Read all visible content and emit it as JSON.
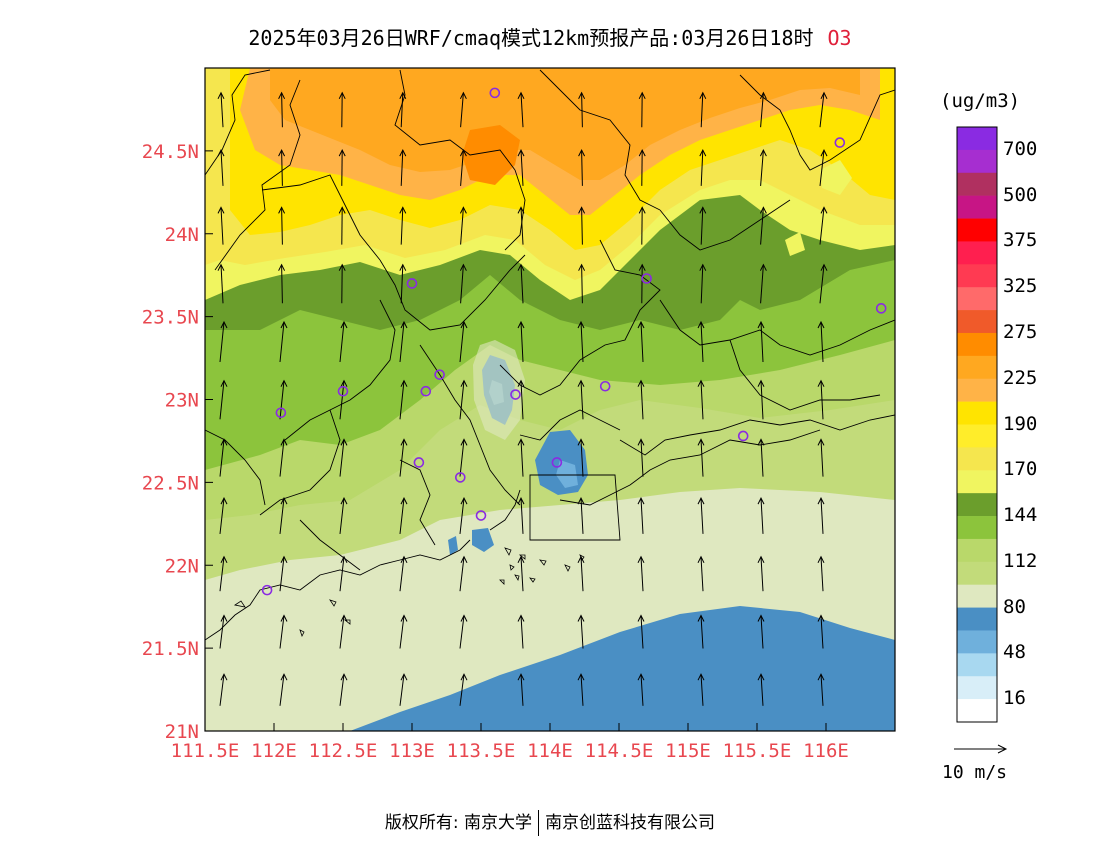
{
  "title": {
    "main": "2025年03月26日WRF/cmaq模式12km预报产品:03月26日18时",
    "species": "O3"
  },
  "axes": {
    "lat_labels": [
      "24.5N",
      "24N",
      "23.5N",
      "23N",
      "22.5N",
      "22N",
      "21.5N",
      "21N"
    ],
    "lon_labels": [
      "111.5E",
      "112E",
      "112.5E",
      "113E",
      "113.5E",
      "114E",
      "114.5E",
      "115E",
      "115.5E",
      "116E"
    ],
    "lat_range": [
      21,
      25
    ],
    "lon_range": [
      111.5,
      116.5
    ]
  },
  "legend": {
    "unit": "(ug/m3)",
    "labels": [
      "700",
      "500",
      "375",
      "325",
      "275",
      "225",
      "190",
      "170",
      "144",
      "112",
      "80",
      "48",
      "16"
    ],
    "colors_top_to_bottom": [
      "#8a2be2",
      "#a62ed0",
      "#b03060",
      "#c71585",
      "#ff0000",
      "#ff1f4f",
      "#ff3a52",
      "#ff6a6a",
      "#f05a2a",
      "#ff8c00",
      "#ffa820",
      "#ffb347",
      "#ffe400",
      "#ffed2a",
      "#f5e64e",
      "#f0f560",
      "#6b9e2c",
      "#8cc43c",
      "#b9d86a",
      "#c2db7a",
      "#dfe8c0",
      "#4a8fc4",
      "#6fb0dc",
      "#a8d8f0",
      "#d8eef8",
      "#ffffff"
    ]
  },
  "wind": {
    "reference": "10 m/s"
  },
  "footer": {
    "left": "版权所有: 南京大学",
    "right": "南京创蓝科技有限公司"
  },
  "colors": {
    "axis_label": "#e8474f",
    "species": "#e0203a",
    "station_marker": "#8a2be2"
  },
  "stations": [
    {
      "lon": 113.6,
      "lat": 24.85
    },
    {
      "lon": 116.1,
      "lat": 24.55
    },
    {
      "lon": 113.0,
      "lat": 23.7
    },
    {
      "lon": 114.7,
      "lat": 23.73
    },
    {
      "lon": 116.4,
      "lat": 23.55
    },
    {
      "lon": 113.2,
      "lat": 23.15
    },
    {
      "lon": 112.5,
      "lat": 23.05
    },
    {
      "lon": 113.1,
      "lat": 23.05
    },
    {
      "lon": 113.75,
      "lat": 23.03
    },
    {
      "lon": 114.4,
      "lat": 23.08
    },
    {
      "lon": 112.05,
      "lat": 22.92
    },
    {
      "lon": 115.4,
      "lat": 22.78
    },
    {
      "lon": 113.05,
      "lat": 22.62
    },
    {
      "lon": 114.05,
      "lat": 22.62
    },
    {
      "lon": 113.35,
      "lat": 22.53
    },
    {
      "lon": 113.5,
      "lat": 22.3
    },
    {
      "lon": 111.95,
      "lat": 21.85
    }
  ]
}
